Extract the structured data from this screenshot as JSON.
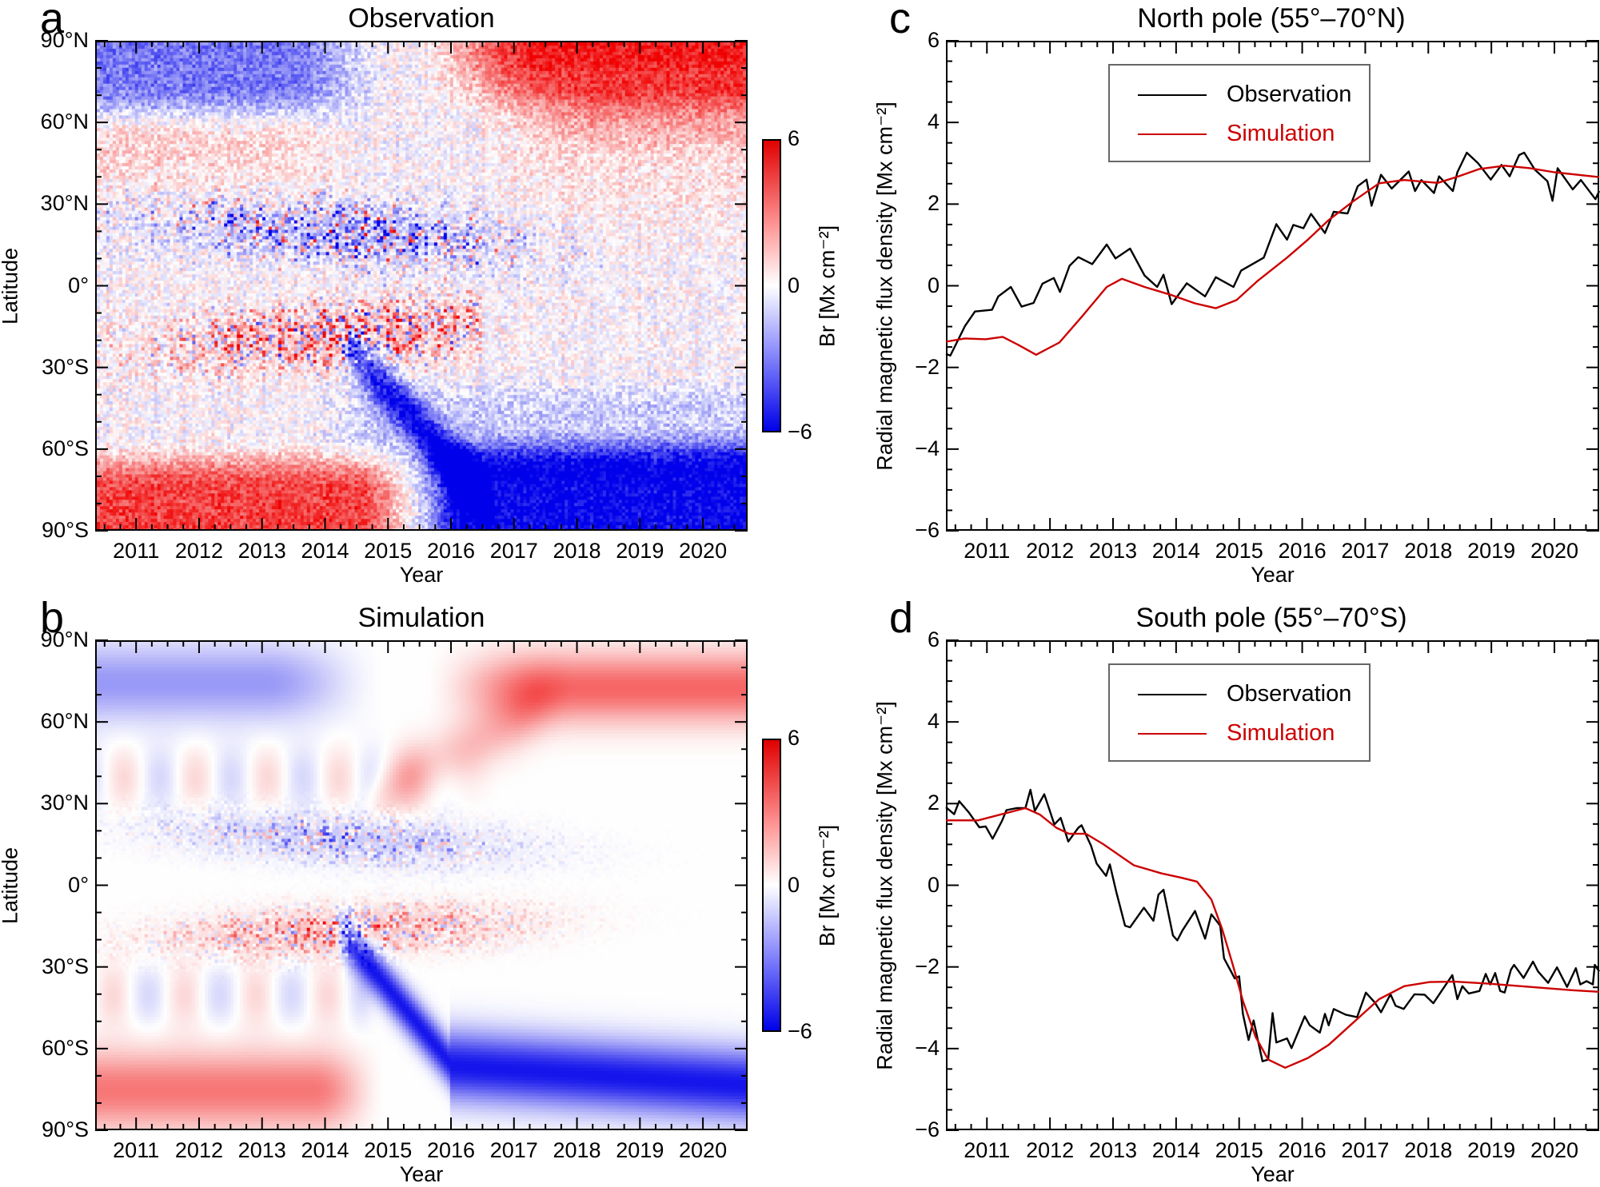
{
  "panels": {
    "a": {
      "letter": "a",
      "title": "Observation"
    },
    "b": {
      "letter": "b",
      "title": "Simulation"
    },
    "c": {
      "letter": "c",
      "title": "North pole (55°–70°N)"
    },
    "d": {
      "letter": "d",
      "title": "South pole (55°–70°S)"
    }
  },
  "colors": {
    "observation": "#000000",
    "simulation": "#cc0000",
    "cbar_pos": "#e00000",
    "cbar_neg": "#0000e8"
  },
  "chart_data": [
    {
      "id": "a",
      "type": "heatmap",
      "title": "Observation",
      "xlabel": "Year",
      "ylabel": "Latitude",
      "xlim": [
        2010.35,
        2020.71
      ],
      "ylim": [
        -90,
        90
      ],
      "xticks": [
        "2011",
        "2012",
        "2013",
        "2014",
        "2015",
        "2016",
        "2017",
        "2018",
        "2019",
        "2020"
      ],
      "yticks": [
        "90°N",
        "60°N",
        "30°N",
        "0°",
        "30°S",
        "60°S",
        "90°S"
      ],
      "colorbar": {
        "label": "Br [Mx cm⁻²]",
        "range": [
          -6,
          6
        ],
        "ticks": [
          "6",
          "0",
          "−6"
        ]
      }
    },
    {
      "id": "b",
      "type": "heatmap",
      "title": "Simulation",
      "xlabel": "Year",
      "ylabel": "Latitude",
      "xlim": [
        2010.35,
        2020.71
      ],
      "ylim": [
        -90,
        90
      ],
      "xticks": [
        "2011",
        "2012",
        "2013",
        "2014",
        "2015",
        "2016",
        "2017",
        "2018",
        "2019",
        "2020"
      ],
      "yticks": [
        "90°N",
        "60°N",
        "30°N",
        "0°",
        "30°S",
        "60°S",
        "90°S"
      ],
      "colorbar": {
        "label": "Br [Mx cm⁻²]",
        "range": [
          -6,
          6
        ],
        "ticks": [
          "6",
          "0",
          "−6"
        ]
      }
    },
    {
      "id": "c",
      "type": "line",
      "title": "North pole (55°–70°N)",
      "xlabel": "Year",
      "ylabel": "Radial magnetic flux density [Mx cm⁻²]",
      "xlim": [
        2010.35,
        2020.71
      ],
      "ylim": [
        -6,
        6
      ],
      "xticks": [
        "2011",
        "2012",
        "2013",
        "2014",
        "2015",
        "2016",
        "2017",
        "2018",
        "2019",
        "2020"
      ],
      "yticks": [
        "6",
        "4",
        "2",
        "0",
        "−2",
        "−4",
        "−6"
      ],
      "legend": {
        "position": "top-center",
        "entries": [
          "Observation",
          "Simulation"
        ]
      },
      "series": [
        {
          "name": "Observation",
          "points": [
            [
              2010.35,
              -1.67
            ],
            [
              2010.42,
              -1.71
            ],
            [
              2010.65,
              -0.99
            ],
            [
              2010.81,
              -0.63
            ],
            [
              2011.08,
              -0.59
            ],
            [
              2011.18,
              -0.26
            ],
            [
              2011.38,
              -0.03
            ],
            [
              2011.55,
              -0.51
            ],
            [
              2011.74,
              -0.42
            ],
            [
              2011.88,
              0.05
            ],
            [
              2012.06,
              0.19
            ],
            [
              2012.16,
              -0.15
            ],
            [
              2012.31,
              0.49
            ],
            [
              2012.45,
              0.7
            ],
            [
              2012.67,
              0.53
            ],
            [
              2012.9,
              1.01
            ],
            [
              2013.04,
              0.67
            ],
            [
              2013.27,
              0.91
            ],
            [
              2013.5,
              0.25
            ],
            [
              2013.7,
              -0.03
            ],
            [
              2013.8,
              0.27
            ],
            [
              2013.93,
              -0.45
            ],
            [
              2014.17,
              0.06
            ],
            [
              2014.46,
              -0.26
            ],
            [
              2014.63,
              0.21
            ],
            [
              2014.91,
              -0.03
            ],
            [
              2015.03,
              0.37
            ],
            [
              2015.39,
              0.69
            ],
            [
              2015.59,
              1.51
            ],
            [
              2015.76,
              1.13
            ],
            [
              2015.86,
              1.49
            ],
            [
              2016.02,
              1.41
            ],
            [
              2016.14,
              1.76
            ],
            [
              2016.36,
              1.29
            ],
            [
              2016.5,
              1.81
            ],
            [
              2016.72,
              1.77
            ],
            [
              2016.88,
              2.44
            ],
            [
              2017.02,
              2.6
            ],
            [
              2017.1,
              1.96
            ],
            [
              2017.25,
              2.72
            ],
            [
              2017.42,
              2.38
            ],
            [
              2017.69,
              2.8
            ],
            [
              2017.79,
              2.32
            ],
            [
              2017.89,
              2.59
            ],
            [
              2018.09,
              2.27
            ],
            [
              2018.17,
              2.68
            ],
            [
              2018.39,
              2.32
            ],
            [
              2018.46,
              2.78
            ],
            [
              2018.61,
              3.26
            ],
            [
              2018.79,
              3.0
            ],
            [
              2018.99,
              2.6
            ],
            [
              2019.16,
              2.96
            ],
            [
              2019.29,
              2.68
            ],
            [
              2019.44,
              3.2
            ],
            [
              2019.52,
              3.26
            ],
            [
              2019.69,
              2.84
            ],
            [
              2019.89,
              2.56
            ],
            [
              2019.97,
              2.08
            ],
            [
              2020.05,
              2.88
            ],
            [
              2020.29,
              2.36
            ],
            [
              2020.42,
              2.59
            ],
            [
              2020.65,
              2.12
            ],
            [
              2020.71,
              2.32
            ]
          ]
        },
        {
          "name": "Simulation",
          "points": [
            [
              2010.35,
              -1.37
            ],
            [
              2010.65,
              -1.29
            ],
            [
              2010.98,
              -1.31
            ],
            [
              2011.25,
              -1.25
            ],
            [
              2011.5,
              -1.45
            ],
            [
              2011.78,
              -1.69
            ],
            [
              2012.15,
              -1.39
            ],
            [
              2012.51,
              -0.75
            ],
            [
              2012.9,
              -0.03
            ],
            [
              2013.14,
              0.17
            ],
            [
              2013.5,
              -0.03
            ],
            [
              2013.93,
              -0.23
            ],
            [
              2014.3,
              -0.43
            ],
            [
              2014.63,
              -0.55
            ],
            [
              2014.96,
              -0.35
            ],
            [
              2015.3,
              0.13
            ],
            [
              2015.76,
              0.69
            ],
            [
              2016.09,
              1.13
            ],
            [
              2016.42,
              1.61
            ],
            [
              2016.82,
              2.08
            ],
            [
              2017.22,
              2.51
            ],
            [
              2017.62,
              2.59
            ],
            [
              2018.15,
              2.52
            ],
            [
              2018.48,
              2.68
            ],
            [
              2018.81,
              2.86
            ],
            [
              2019.21,
              2.94
            ],
            [
              2019.61,
              2.88
            ],
            [
              2020.0,
              2.78
            ],
            [
              2020.71,
              2.66
            ]
          ]
        }
      ]
    },
    {
      "id": "d",
      "type": "line",
      "title": "South pole (55°–70°S)",
      "xlabel": "Year",
      "ylabel": "Radial magnetic flux density [Mx cm⁻²]",
      "xlim": [
        2010.35,
        2020.71
      ],
      "ylim": [
        -6,
        6
      ],
      "xticks": [
        "2011",
        "2012",
        "2013",
        "2014",
        "2015",
        "2016",
        "2017",
        "2018",
        "2019",
        "2020"
      ],
      "yticks": [
        "6",
        "4",
        "2",
        "0",
        "−2",
        "−4",
        "−6"
      ],
      "legend": {
        "position": "top-center",
        "entries": [
          "Observation",
          "Simulation"
        ]
      },
      "series": [
        {
          "name": "Observation",
          "points": [
            [
              2010.35,
              1.91
            ],
            [
              2010.48,
              1.74
            ],
            [
              2010.56,
              2.06
            ],
            [
              2010.71,
              1.79
            ],
            [
              2010.88,
              1.42
            ],
            [
              2010.98,
              1.44
            ],
            [
              2011.09,
              1.14
            ],
            [
              2011.24,
              1.58
            ],
            [
              2011.31,
              1.84
            ],
            [
              2011.47,
              1.89
            ],
            [
              2011.61,
              1.89
            ],
            [
              2011.69,
              2.34
            ],
            [
              2011.76,
              1.82
            ],
            [
              2011.91,
              2.23
            ],
            [
              2012.07,
              1.49
            ],
            [
              2012.17,
              1.65
            ],
            [
              2012.29,
              1.07
            ],
            [
              2012.45,
              1.41
            ],
            [
              2012.5,
              1.47
            ],
            [
              2012.65,
              0.97
            ],
            [
              2012.74,
              0.53
            ],
            [
              2012.89,
              0.23
            ],
            [
              2012.95,
              0.51
            ],
            [
              2013.05,
              -0.15
            ],
            [
              2013.19,
              -0.99
            ],
            [
              2013.27,
              -1.03
            ],
            [
              2013.49,
              -0.55
            ],
            [
              2013.64,
              -0.87
            ],
            [
              2013.72,
              -0.23
            ],
            [
              2013.8,
              -0.11
            ],
            [
              2013.95,
              -1.23
            ],
            [
              2014.02,
              -1.35
            ],
            [
              2014.1,
              -1.11
            ],
            [
              2014.3,
              -0.63
            ],
            [
              2014.46,
              -1.31
            ],
            [
              2014.56,
              -0.71
            ],
            [
              2014.7,
              -0.99
            ],
            [
              2014.76,
              -1.79
            ],
            [
              2014.93,
              -2.28
            ],
            [
              2015.0,
              -2.23
            ],
            [
              2015.06,
              -3.15
            ],
            [
              2015.15,
              -3.79
            ],
            [
              2015.23,
              -3.31
            ],
            [
              2015.37,
              -4.31
            ],
            [
              2015.46,
              -4.27
            ],
            [
              2015.53,
              -3.13
            ],
            [
              2015.59,
              -3.85
            ],
            [
              2015.76,
              -3.75
            ],
            [
              2015.83,
              -3.99
            ],
            [
              2016.04,
              -3.21
            ],
            [
              2016.12,
              -3.43
            ],
            [
              2016.28,
              -3.61
            ],
            [
              2016.36,
              -3.15
            ],
            [
              2016.42,
              -3.43
            ],
            [
              2016.5,
              -3.03
            ],
            [
              2016.69,
              -3.17
            ],
            [
              2016.87,
              -3.23
            ],
            [
              2017.01,
              -2.63
            ],
            [
              2017.15,
              -2.87
            ],
            [
              2017.25,
              -3.11
            ],
            [
              2017.4,
              -2.67
            ],
            [
              2017.48,
              -2.95
            ],
            [
              2017.61,
              -3.03
            ],
            [
              2017.78,
              -2.67
            ],
            [
              2017.94,
              -2.68
            ],
            [
              2018.08,
              -2.89
            ],
            [
              2018.21,
              -2.59
            ],
            [
              2018.38,
              -2.2
            ],
            [
              2018.46,
              -2.79
            ],
            [
              2018.54,
              -2.47
            ],
            [
              2018.64,
              -2.65
            ],
            [
              2018.81,
              -2.59
            ],
            [
              2018.91,
              -2.17
            ],
            [
              2018.98,
              -2.43
            ],
            [
              2019.06,
              -2.15
            ],
            [
              2019.14,
              -2.59
            ],
            [
              2019.21,
              -2.63
            ],
            [
              2019.31,
              -2.07
            ],
            [
              2019.36,
              -1.95
            ],
            [
              2019.51,
              -2.27
            ],
            [
              2019.66,
              -1.87
            ],
            [
              2019.74,
              -2.11
            ],
            [
              2019.9,
              -2.39
            ],
            [
              2020.04,
              -2.01
            ],
            [
              2020.2,
              -2.49
            ],
            [
              2020.34,
              -2.03
            ],
            [
              2020.41,
              -2.43
            ],
            [
              2020.51,
              -2.35
            ],
            [
              2020.61,
              -2.43
            ],
            [
              2020.64,
              -1.95
            ],
            [
              2020.71,
              -2.11
            ]
          ]
        },
        {
          "name": "Simulation",
          "points": [
            [
              2010.35,
              1.59
            ],
            [
              2010.86,
              1.59
            ],
            [
              2011.31,
              1.77
            ],
            [
              2011.61,
              1.89
            ],
            [
              2011.84,
              1.73
            ],
            [
              2012.1,
              1.41
            ],
            [
              2012.3,
              1.26
            ],
            [
              2012.57,
              1.26
            ],
            [
              2012.84,
              1.01
            ],
            [
              2013.33,
              0.49
            ],
            [
              2013.77,
              0.29
            ],
            [
              2014.07,
              0.19
            ],
            [
              2014.33,
              0.09
            ],
            [
              2014.56,
              -0.35
            ],
            [
              2014.73,
              -1.07
            ],
            [
              2014.9,
              -1.95
            ],
            [
              2015.06,
              -2.83
            ],
            [
              2015.26,
              -3.71
            ],
            [
              2015.46,
              -4.27
            ],
            [
              2015.73,
              -4.47
            ],
            [
              2016.09,
              -4.23
            ],
            [
              2016.42,
              -3.91
            ],
            [
              2016.79,
              -3.39
            ],
            [
              2017.22,
              -2.79
            ],
            [
              2017.62,
              -2.47
            ],
            [
              2018.02,
              -2.37
            ],
            [
              2018.42,
              -2.36
            ],
            [
              2018.95,
              -2.41
            ],
            [
              2019.62,
              -2.49
            ],
            [
              2020.28,
              -2.57
            ],
            [
              2020.71,
              -2.61
            ]
          ]
        }
      ]
    }
  ]
}
